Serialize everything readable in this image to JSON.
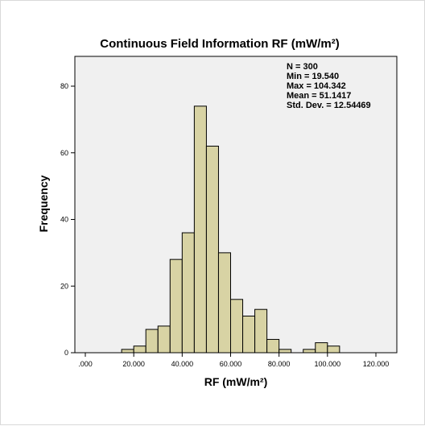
{
  "chart_data": {
    "type": "bar",
    "title": "Continuous Field Information RF (mW/m²)",
    "xlabel": "RF (mW/m²)",
    "ylabel": "Frequency",
    "xlim": [
      0,
      130
    ],
    "ylim": [
      0,
      90
    ],
    "xticks": [
      0,
      20,
      40,
      60,
      80,
      100,
      120
    ],
    "xtick_labels": [
      ".000",
      "20.000",
      "40.000",
      "60.000",
      "80.000",
      "100.000",
      "120.000"
    ],
    "yticks": [
      0,
      20,
      40,
      60,
      80
    ],
    "ytick_labels": [
      "0",
      "20",
      "40",
      "60",
      "80"
    ],
    "bin_width": 5,
    "bins": [
      {
        "start": 15,
        "end": 20,
        "count": 1
      },
      {
        "start": 20,
        "end": 25,
        "count": 2
      },
      {
        "start": 25,
        "end": 30,
        "count": 7
      },
      {
        "start": 30,
        "end": 35,
        "count": 8
      },
      {
        "start": 35,
        "end": 40,
        "count": 28
      },
      {
        "start": 40,
        "end": 45,
        "count": 36
      },
      {
        "start": 45,
        "end": 50,
        "count": 74
      },
      {
        "start": 50,
        "end": 55,
        "count": 62
      },
      {
        "start": 55,
        "end": 60,
        "count": 30
      },
      {
        "start": 60,
        "end": 65,
        "count": 16
      },
      {
        "start": 65,
        "end": 70,
        "count": 11
      },
      {
        "start": 70,
        "end": 75,
        "count": 13
      },
      {
        "start": 75,
        "end": 80,
        "count": 4
      },
      {
        "start": 80,
        "end": 85,
        "count": 1
      },
      {
        "start": 90,
        "end": 95,
        "count": 1
      },
      {
        "start": 95,
        "end": 100,
        "count": 3
      },
      {
        "start": 100,
        "end": 105,
        "count": 2
      }
    ],
    "stats": [
      "N = 300",
      "Min = 19.540",
      "Max = 104.342",
      "Mean = 51.1417",
      "Std. Dev. = 12.54469"
    ],
    "grid": false,
    "colors": {
      "bar_fill": "#d8d3a4",
      "bar_stroke": "#000000",
      "plot_bg": "#f0f0f0"
    }
  }
}
